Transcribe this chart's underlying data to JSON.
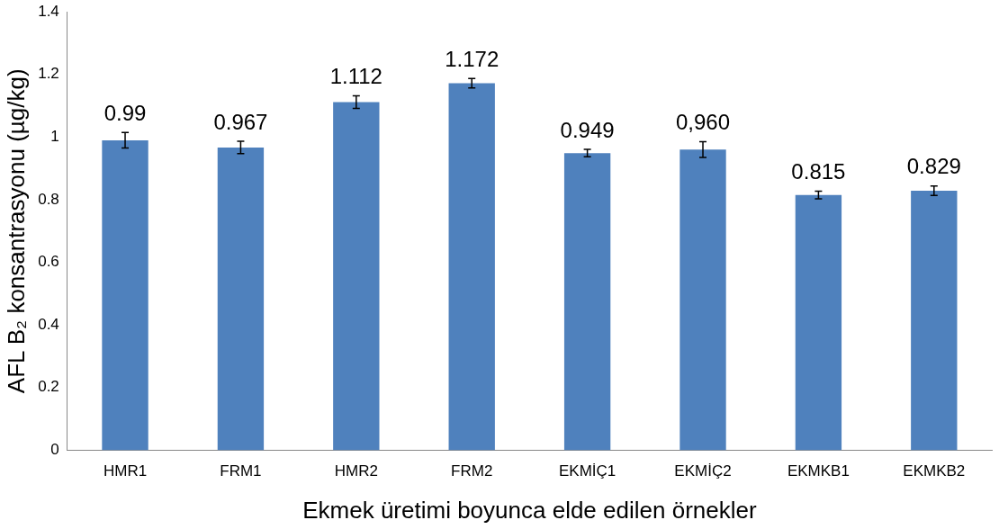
{
  "chart_data": {
    "type": "bar",
    "xlabel": "Ekmek üretimi boyunca elde edilen örnekler",
    "ylabel": "AFL B₂ konsantrasyonu (µg/kg)",
    "categories": [
      "HMR1",
      "FRM1",
      "HMR2",
      "FRM2",
      "EKMİÇ1",
      "EKMİÇ2",
      "EKMKB1",
      "EKMKB2"
    ],
    "values": [
      0.99,
      0.967,
      1.112,
      1.172,
      0.949,
      0.96,
      0.815,
      0.829
    ],
    "value_labels": [
      "0.99",
      "0.967",
      "1.112",
      "1.172",
      "0.949",
      "0,960",
      "0.815",
      "0.829"
    ],
    "errors": [
      0.025,
      0.02,
      0.02,
      0.015,
      0.012,
      0.025,
      0.012,
      0.015
    ],
    "color": "#4f81bd",
    "ylim": [
      0,
      1.4
    ],
    "yticks": [
      0,
      0.2,
      0.4,
      0.6,
      0.8,
      1,
      1.2,
      1.4
    ],
    "grid": false,
    "legend": false
  }
}
